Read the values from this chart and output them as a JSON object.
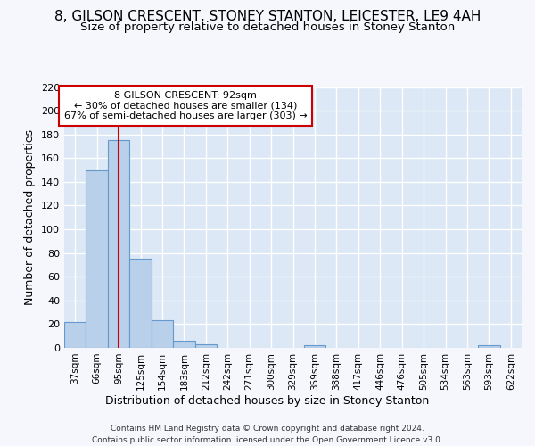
{
  "title1": "8, GILSON CRESCENT, STONEY STANTON, LEICESTER, LE9 4AH",
  "title2": "Size of property relative to detached houses in Stoney Stanton",
  "xlabel": "Distribution of detached houses by size in Stoney Stanton",
  "ylabel": "Number of detached properties",
  "footnote1": "Contains HM Land Registry data © Crown copyright and database right 2024.",
  "footnote2": "Contains public sector information licensed under the Open Government Licence v3.0.",
  "bar_labels": [
    "37sqm",
    "66sqm",
    "95sqm",
    "125sqm",
    "154sqm",
    "183sqm",
    "212sqm",
    "242sqm",
    "271sqm",
    "300sqm",
    "329sqm",
    "359sqm",
    "388sqm",
    "417sqm",
    "446sqm",
    "476sqm",
    "505sqm",
    "534sqm",
    "563sqm",
    "593sqm",
    "622sqm"
  ],
  "bar_values": [
    22,
    150,
    175,
    75,
    23,
    6,
    3,
    0,
    0,
    0,
    0,
    2,
    0,
    0,
    0,
    0,
    0,
    0,
    0,
    2,
    0
  ],
  "bar_color": "#b8d0ea",
  "bar_edgecolor": "#6699cc",
  "vline_x": 2.0,
  "vline_color": "#cc0000",
  "annotation_line1": "8 GILSON CRESCENT: 92sqm",
  "annotation_line2": "← 30% of detached houses are smaller (134)",
  "annotation_line3": "67% of semi-detached houses are larger (303) →",
  "annotation_box_color": "#ffffff",
  "annotation_box_edgecolor": "#cc0000",
  "ylim": [
    0,
    220
  ],
  "yticks": [
    0,
    20,
    40,
    60,
    80,
    100,
    120,
    140,
    160,
    180,
    200,
    220
  ],
  "fig_background": "#f5f7fc",
  "plot_background": "#dce8f5",
  "grid_color": "#ffffff",
  "title1_fontsize": 11,
  "title2_fontsize": 9.5,
  "xlabel_fontsize": 9,
  "ylabel_fontsize": 9,
  "tick_fontsize": 8,
  "xtick_fontsize": 7.5
}
